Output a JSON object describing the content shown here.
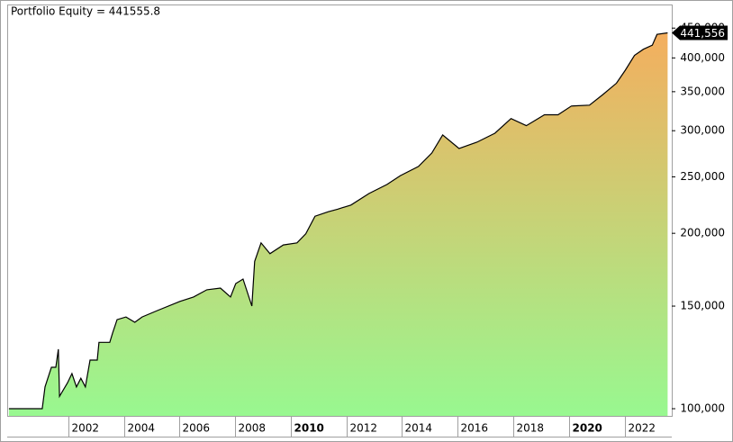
{
  "chart_data": {
    "type": "area",
    "title": "Portfolio Equity = 441555.8",
    "series": [
      {
        "name": "Portfolio Equity",
        "color": "#000000",
        "fill_colors": [
          "#98f890",
          "#f4ae5e"
        ],
        "x": [
          1999.86,
          2001.06,
          2001.16,
          2001.39,
          2001.55,
          2001.64,
          2001.68,
          2001.97,
          2002.13,
          2002.29,
          2002.45,
          2002.61,
          2002.78,
          2003.04,
          2003.1,
          2003.49,
          2003.59,
          2003.75,
          2004.07,
          2004.39,
          2004.65,
          2005.2,
          2006.01,
          2006.5,
          2006.98,
          2007.47,
          2007.83,
          2008.02,
          2008.28,
          2008.6,
          2008.7,
          2008.93,
          2009.25,
          2009.73,
          2010.22,
          2010.54,
          2010.87,
          2011.35,
          2011.68,
          2012.16,
          2012.81,
          2013.46,
          2013.94,
          2014.59,
          2015.07,
          2015.46,
          2016.05,
          2016.69,
          2017.34,
          2017.92,
          2018.47,
          2019.12,
          2019.61,
          2020.09,
          2020.74,
          2021.22,
          2021.71,
          2022.03,
          2022.36,
          2022.68,
          2023.0,
          2023.17,
          2023.55
        ],
        "values": [
          100000,
          100000,
          109000,
          117800,
          117800,
          126500,
          105000,
          110800,
          114900,
          109000,
          112800,
          109000,
          121200,
          121200,
          130000,
          130000,
          134800,
          142200,
          143700,
          140700,
          143700,
          147400,
          152800,
          155500,
          160000,
          161100,
          155500,
          164000,
          166900,
          150000,
          179000,
          192600,
          184500,
          191000,
          192600,
          199600,
          214000,
          217800,
          220000,
          223600,
          234000,
          242600,
          251200,
          260500,
          274700,
          295000,
          279600,
          286600,
          297000,
          314800,
          306000,
          319500,
          319500,
          330700,
          331900,
          346000,
          362000,
          381000,
          404000,
          414000,
          420600,
          439000,
          441555.8
        ],
        "value_labels": [
          null,
          null,
          null,
          null,
          null,
          null,
          null,
          null,
          null,
          null,
          null,
          null,
          null,
          null,
          null,
          null,
          null,
          null,
          null,
          null,
          null,
          null,
          null,
          null,
          null,
          null,
          null,
          null,
          null,
          null,
          null,
          null,
          null,
          null,
          null,
          null,
          null,
          null,
          null,
          null,
          null,
          null,
          null,
          null,
          null,
          null,
          null,
          null,
          null,
          null,
          null,
          null,
          null,
          null,
          null,
          null,
          null,
          null,
          null,
          null,
          null,
          null,
          "441,556"
        ]
      }
    ],
    "xlim": [
      1999.8,
      2023.7
    ],
    "xticks": [
      2002,
      2004,
      2006,
      2008,
      2010,
      2012,
      2014,
      2016,
      2018,
      2020,
      2022
    ],
    "ylim": [
      97200,
      494000
    ],
    "log_scale": true,
    "yticks": [
      {
        "value": 100000,
        "label": "100,000"
      },
      {
        "value": 150000,
        "label": "150,000"
      },
      {
        "value": 200000,
        "label": "200,000"
      },
      {
        "value": 250000,
        "label": "250,000"
      },
      {
        "value": 300000,
        "label": "300,000"
      },
      {
        "value": 350000,
        "label": "350,000"
      },
      {
        "value": 400000,
        "label": "400,000"
      },
      {
        "value": 450000,
        "label": "450,000"
      }
    ]
  }
}
